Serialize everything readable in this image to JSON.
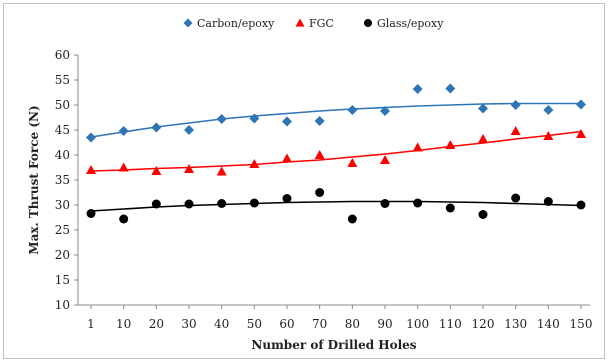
{
  "chart_data": {
    "type": "scatter",
    "xlabel": "Number of Drilled Holes",
    "ylabel": "Max. Thrust Force (N)",
    "categories": [
      "1",
      "10",
      "20",
      "30",
      "40",
      "50",
      "60",
      "70",
      "80",
      "90",
      "100",
      "110",
      "120",
      "130",
      "140",
      "150"
    ],
    "ylim": [
      10,
      60
    ],
    "yticks": [
      10,
      15,
      20,
      25,
      30,
      35,
      40,
      45,
      50,
      55,
      60
    ],
    "grid": false,
    "legend_position": "top",
    "series": [
      {
        "name": "Carbon/epoxy",
        "marker": "diamond",
        "color": "#2e75b6",
        "values": [
          43.5,
          44.8,
          45.5,
          45.0,
          47.2,
          47.3,
          46.7,
          46.8,
          49.0,
          48.8,
          53.2,
          53.3,
          49.3,
          50.0,
          49.0,
          50.1
        ],
        "trend": [
          43.6,
          44.6,
          45.6,
          46.4,
          47.2,
          47.8,
          48.3,
          48.8,
          49.2,
          49.5,
          49.8,
          50.0,
          50.2,
          50.3,
          50.3,
          50.3
        ]
      },
      {
        "name": "FGC",
        "marker": "triangle",
        "color": "#ff0000",
        "values": [
          37.0,
          37.5,
          36.8,
          37.2,
          36.7,
          38.2,
          39.3,
          40.0,
          38.4,
          39.0,
          41.5,
          42.0,
          43.2,
          44.8,
          43.8,
          44.2
        ],
        "trend": [
          36.8,
          37.0,
          37.3,
          37.5,
          37.8,
          38.1,
          38.6,
          39.0,
          39.6,
          40.2,
          40.9,
          41.7,
          42.4,
          43.2,
          43.9,
          44.7
        ]
      },
      {
        "name": "Glass/epoxy",
        "marker": "circle",
        "color": "#000000",
        "values": [
          28.3,
          27.2,
          30.2,
          30.2,
          30.3,
          30.4,
          31.3,
          32.5,
          27.2,
          30.3,
          30.4,
          29.4,
          28.1,
          31.4,
          30.7,
          30.0
        ],
        "trend": [
          28.8,
          29.2,
          29.6,
          29.9,
          30.1,
          30.3,
          30.5,
          30.6,
          30.7,
          30.7,
          30.7,
          30.6,
          30.5,
          30.3,
          30.1,
          29.9
        ]
      }
    ]
  }
}
